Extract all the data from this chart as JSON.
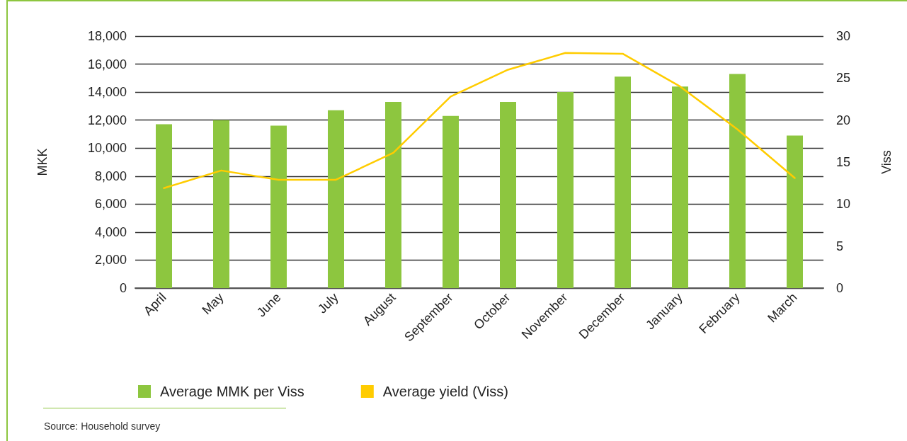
{
  "chart_data": {
    "type": "bar",
    "categories": [
      "April",
      "May",
      "June",
      "July",
      "August",
      "September",
      "October",
      "November",
      "December",
      "January",
      "February",
      "March"
    ],
    "series": [
      {
        "name": "Average MMK per Viss",
        "color": "#8dc63f",
        "values": [
          11700,
          12000,
          11600,
          12700,
          13300,
          12300,
          13300,
          14000,
          15100,
          14400,
          15300,
          10900
        ]
      },
      {
        "name": "Average yield (Viss)",
        "type": "line",
        "axis": "y2",
        "color": "#ffcc00",
        "line_style": "solid",
        "marker": "none",
        "values": [
          11.9,
          14,
          12.9,
          12.9,
          16.1,
          22.8,
          26,
          28,
          27.9,
          24,
          18.9,
          13.1
        ]
      }
    ],
    "ylabel": "MKK",
    "y2label": "Viss",
    "ylim": [
      0,
      18000
    ],
    "yticks": [
      0,
      {
        "value": 2000,
        "label": "2,000"
      },
      {
        "value": 4000,
        "label": "4,000"
      },
      {
        "value": 6000,
        "label": "6,000"
      },
      {
        "value": 8000,
        "label": "8,000"
      },
      {
        "value": 10000,
        "label": "10,000"
      },
      {
        "value": 12000,
        "label": "12,000"
      },
      {
        "value": 14000,
        "label": "14,000"
      },
      {
        "value": 16000,
        "label": "16,000"
      },
      {
        "value": 18000,
        "label": "18,000"
      }
    ],
    "y2lim": [
      0,
      30
    ],
    "y2ticks": [
      0,
      5,
      10,
      15,
      20,
      25,
      30
    ],
    "grid": "y",
    "legend": "bottom",
    "annotations": [
      "Source: Household survey"
    ]
  }
}
